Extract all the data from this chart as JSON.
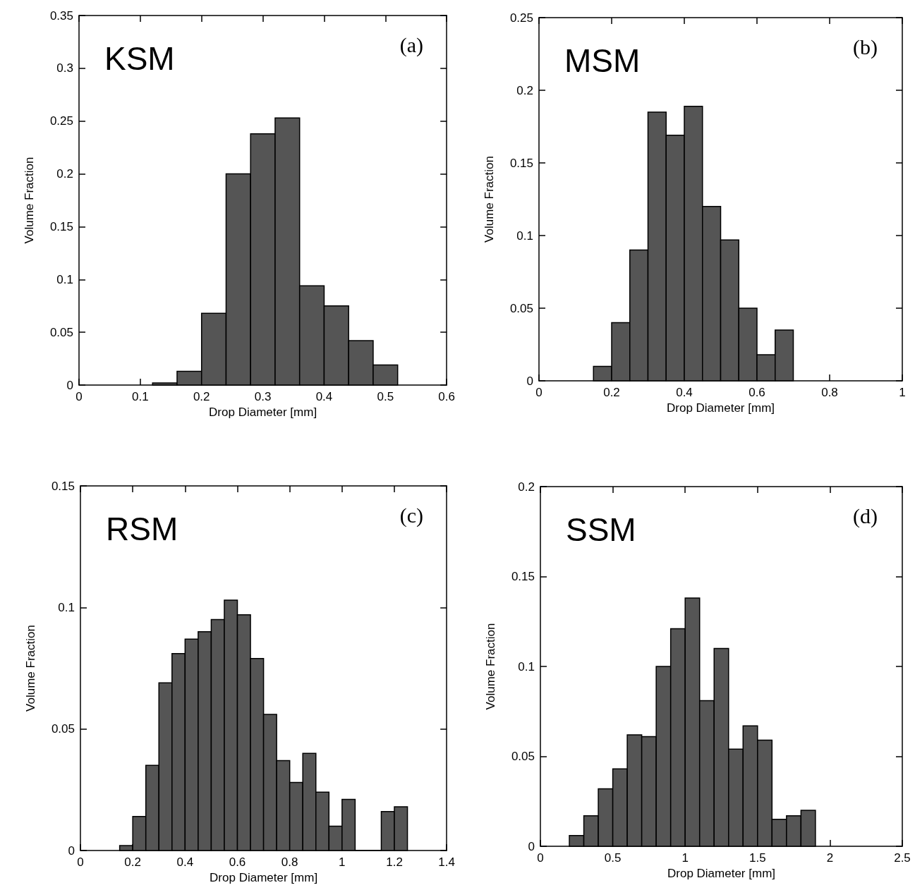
{
  "chart_data": [
    {
      "type": "histogram",
      "xlabel": "Drop Diameter [mm]",
      "ylabel": "Volume Fraction",
      "annotations": [
        "KSM",
        "(a)"
      ],
      "color": "#555555",
      "bins": [
        0.12,
        0.16,
        0.2,
        0.24,
        0.28,
        0.32,
        0.36,
        0.4,
        0.44,
        0.48,
        0.52
      ],
      "values": [
        0.002,
        0.013,
        0.068,
        0.2,
        0.238,
        0.253,
        0.094,
        0.075,
        0.042,
        0.019
      ],
      "xlim": [
        0,
        0.6
      ],
      "xticks": [
        0,
        0.1,
        0.2,
        0.3,
        0.4,
        0.5,
        0.6
      ],
      "ylim": [
        0,
        0.35
      ],
      "yticks": [
        0,
        0.05,
        0.1,
        0.15,
        0.2,
        0.25,
        0.3,
        0.35
      ]
    },
    {
      "type": "histogram",
      "xlabel": "Drop Diameter [mm]",
      "ylabel": "Volume Fraction",
      "annotations": [
        "MSM",
        "(b)"
      ],
      "color": "#555555",
      "bins": [
        0.15,
        0.2,
        0.25,
        0.3,
        0.35,
        0.4,
        0.45,
        0.5,
        0.55,
        0.6,
        0.65,
        0.7
      ],
      "values": [
        0.01,
        0.04,
        0.09,
        0.185,
        0.169,
        0.189,
        0.12,
        0.097,
        0.05,
        0.018,
        0.035
      ],
      "xlim": [
        0,
        1
      ],
      "xticks": [
        0,
        0.2,
        0.4,
        0.6,
        0.8,
        1
      ],
      "ylim": [
        0,
        0.25
      ],
      "yticks": [
        0,
        0.05,
        0.1,
        0.15,
        0.2,
        0.25
      ]
    },
    {
      "type": "histogram",
      "xlabel": "Drop Diameter [mm]",
      "ylabel": "Volume Fraction",
      "annotations": [
        "RSM",
        "(c)"
      ],
      "color": "#555555",
      "bins": [
        0.15,
        0.2,
        0.25,
        0.3,
        0.35,
        0.4,
        0.45,
        0.5,
        0.55,
        0.6,
        0.65,
        0.7,
        0.75,
        0.8,
        0.85,
        0.9,
        0.95,
        1.0,
        1.05,
        1.1,
        1.15,
        1.2,
        1.25
      ],
      "values": [
        0.002,
        0.014,
        0.035,
        0.069,
        0.081,
        0.087,
        0.09,
        0.095,
        0.103,
        0.097,
        0.079,
        0.056,
        0.037,
        0.028,
        0.04,
        0.024,
        0.01,
        0.021,
        0,
        0,
        0.016,
        0.018
      ],
      "xlim": [
        0,
        1.4
      ],
      "xticks": [
        0,
        0.2,
        0.4,
        0.6,
        0.8,
        1,
        1.2,
        1.4
      ],
      "ylim": [
        0,
        0.15
      ],
      "yticks": [
        0,
        0.05,
        0.1,
        0.15
      ]
    },
    {
      "type": "histogram",
      "xlabel": "Drop Diameter [mm]",
      "ylabel": "Volume Fraction",
      "annotations": [
        "SSM",
        "(d)"
      ],
      "color": "#555555",
      "bins": [
        0.2,
        0.3,
        0.4,
        0.5,
        0.6,
        0.7,
        0.8,
        0.9,
        1.0,
        1.1,
        1.2,
        1.3,
        1.4,
        1.5,
        1.6,
        1.7,
        1.8,
        1.9
      ],
      "values": [
        0.006,
        0.017,
        0.032,
        0.043,
        0.062,
        0.061,
        0.1,
        0.121,
        0.138,
        0.081,
        0.11,
        0.054,
        0.067,
        0.059,
        0.015,
        0.017,
        0.02
      ],
      "xlim": [
        0,
        2.5
      ],
      "xticks": [
        0,
        0.5,
        1,
        1.5,
        2,
        2.5
      ],
      "ylim": [
        0,
        0.2
      ],
      "yticks": [
        0,
        0.05,
        0.1,
        0.15,
        0.2
      ]
    }
  ]
}
